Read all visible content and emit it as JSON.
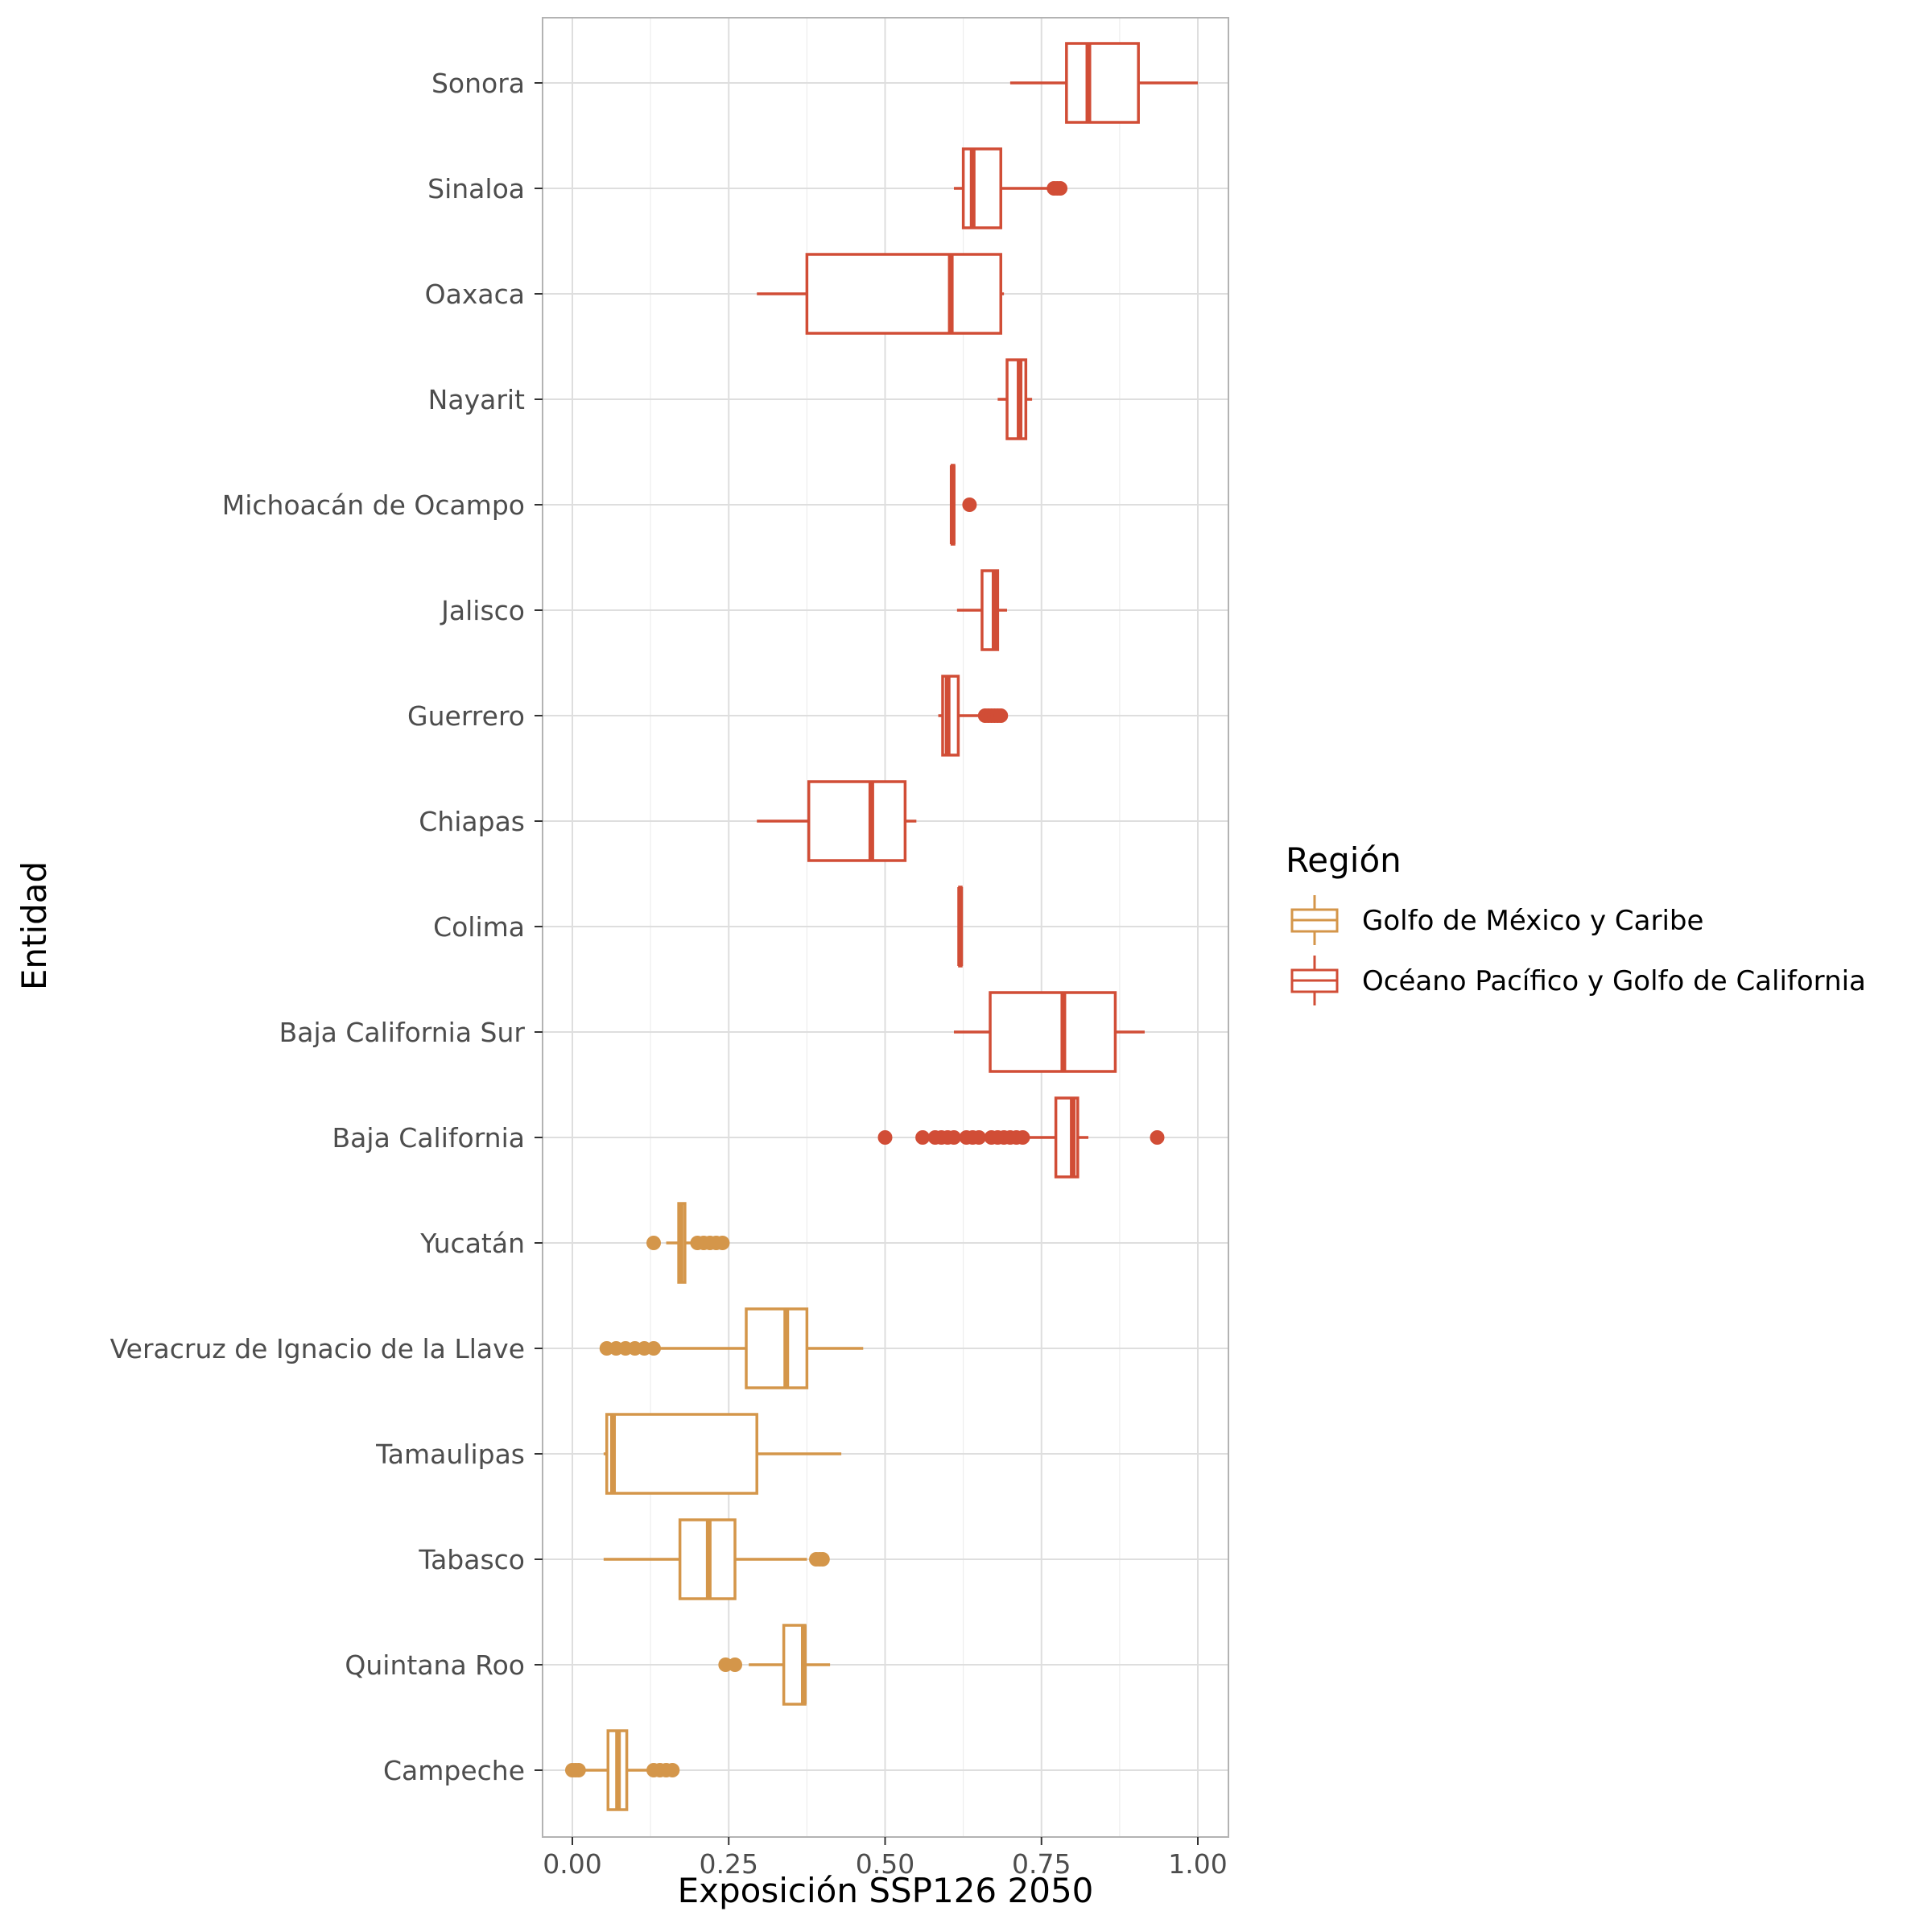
{
  "chart_data": {
    "type": "boxplot",
    "orientation": "horizontal",
    "xlabel": "Exposición SSP126 2050",
    "ylabel": "Entidad",
    "xlim": [
      -0.05,
      1.05
    ],
    "x_ticks": [
      0.0,
      0.25,
      0.5,
      0.75,
      1.0
    ],
    "x_tick_labels": [
      "0.00",
      "0.25",
      "0.50",
      "0.75",
      "1.00"
    ],
    "grid": true,
    "legend": {
      "title": "Región",
      "placement": "right",
      "entries": [
        {
          "label": "Golfo de México y Caribe",
          "color": "#D4964A"
        },
        {
          "label": "Océano Pacífico y Golfo de California",
          "color": "#D14D36"
        }
      ]
    },
    "categories": [
      "Sonora",
      "Sinaloa",
      "Oaxaca",
      "Nayarit",
      "Michoacán de Ocampo",
      "Jalisco",
      "Guerrero",
      "Chiapas",
      "Colima",
      "Baja California Sur",
      "Baja California",
      "Yucatán",
      "Veracruz de Ignacio de la Llave",
      "Tamaulipas",
      "Tabasco",
      "Quintana Roo",
      "Campeche"
    ],
    "series": [
      {
        "category": "Sonora",
        "region": 1,
        "whisker_low": 0.7,
        "q1": 0.79,
        "median": 0.825,
        "q3": 0.905,
        "whisker_high": 1.0,
        "outliers": []
      },
      {
        "category": "Sinaloa",
        "region": 1,
        "whisker_low": 0.61,
        "q1": 0.625,
        "median": 0.64,
        "q3": 0.685,
        "whisker_high": 0.76,
        "outliers": [
          0.77,
          0.775,
          0.78
        ]
      },
      {
        "category": "Oaxaca",
        "region": 1,
        "whisker_low": 0.295,
        "q1": 0.375,
        "median": 0.605,
        "q3": 0.685,
        "whisker_high": 0.69,
        "outliers": []
      },
      {
        "category": "Nayarit",
        "region": 1,
        "whisker_low": 0.68,
        "q1": 0.695,
        "median": 0.715,
        "q3": 0.725,
        "whisker_high": 0.735,
        "outliers": []
      },
      {
        "category": "Michoacán de Ocampo",
        "region": 1,
        "whisker_low": 0.605,
        "q1": 0.607,
        "median": 0.608,
        "q3": 0.61,
        "whisker_high": 0.612,
        "outliers": [
          0.635
        ]
      },
      {
        "category": "Jalisco",
        "region": 1,
        "whisker_low": 0.615,
        "q1": 0.655,
        "median": 0.675,
        "q3": 0.68,
        "whisker_high": 0.695,
        "outliers": []
      },
      {
        "category": "Guerrero",
        "region": 1,
        "whisker_low": 0.585,
        "q1": 0.592,
        "median": 0.6,
        "q3": 0.617,
        "whisker_high": 0.65,
        "outliers": [
          0.66,
          0.665,
          0.67,
          0.675,
          0.68,
          0.685
        ]
      },
      {
        "category": "Chiapas",
        "region": 1,
        "whisker_low": 0.295,
        "q1": 0.378,
        "median": 0.478,
        "q3": 0.532,
        "whisker_high": 0.55,
        "outliers": []
      },
      {
        "category": "Colima",
        "region": 1,
        "whisker_low": 0.619,
        "q1": 0.619,
        "median": 0.62,
        "q3": 0.62,
        "whisker_high": 0.621,
        "outliers": []
      },
      {
        "category": "Baja California Sur",
        "region": 1,
        "whisker_low": 0.61,
        "q1": 0.668,
        "median": 0.785,
        "q3": 0.868,
        "whisker_high": 0.915,
        "outliers": []
      },
      {
        "category": "Baja California",
        "region": 1,
        "whisker_low": 0.73,
        "q1": 0.773,
        "median": 0.8,
        "q3": 0.808,
        "whisker_high": 0.825,
        "outliers": [
          0.5,
          0.56,
          0.58,
          0.59,
          0.6,
          0.61,
          0.63,
          0.64,
          0.65,
          0.67,
          0.68,
          0.69,
          0.7,
          0.71,
          0.72,
          0.935
        ]
      },
      {
        "category": "Yucatán",
        "region": 0,
        "whisker_low": 0.15,
        "q1": 0.17,
        "median": 0.173,
        "q3": 0.18,
        "whisker_high": 0.195,
        "outliers": [
          0.13,
          0.2,
          0.21,
          0.22,
          0.23,
          0.24
        ]
      },
      {
        "category": "Veracruz de Ignacio de la Llave",
        "region": 0,
        "whisker_low": 0.135,
        "q1": 0.278,
        "median": 0.342,
        "q3": 0.375,
        "whisker_high": 0.465,
        "outliers": [
          0.055,
          0.07,
          0.085,
          0.1,
          0.115,
          0.13
        ]
      },
      {
        "category": "Tamaulipas",
        "region": 0,
        "whisker_low": 0.05,
        "q1": 0.055,
        "median": 0.065,
        "q3": 0.295,
        "whisker_high": 0.43,
        "outliers": []
      },
      {
        "category": "Tabasco",
        "region": 0,
        "whisker_low": 0.05,
        "q1": 0.172,
        "median": 0.218,
        "q3": 0.26,
        "whisker_high": 0.375,
        "outliers": [
          0.39,
          0.395,
          0.4
        ]
      },
      {
        "category": "Quintana Roo",
        "region": 0,
        "whisker_low": 0.282,
        "q1": 0.338,
        "median": 0.37,
        "q3": 0.372,
        "whisker_high": 0.412,
        "outliers": [
          0.245,
          0.26
        ]
      },
      {
        "category": "Campeche",
        "region": 0,
        "whisker_low": 0.01,
        "q1": 0.057,
        "median": 0.073,
        "q3": 0.087,
        "whisker_high": 0.12,
        "outliers": [
          0.0,
          0.005,
          0.01,
          0.13,
          0.14,
          0.15,
          0.16
        ]
      }
    ]
  }
}
